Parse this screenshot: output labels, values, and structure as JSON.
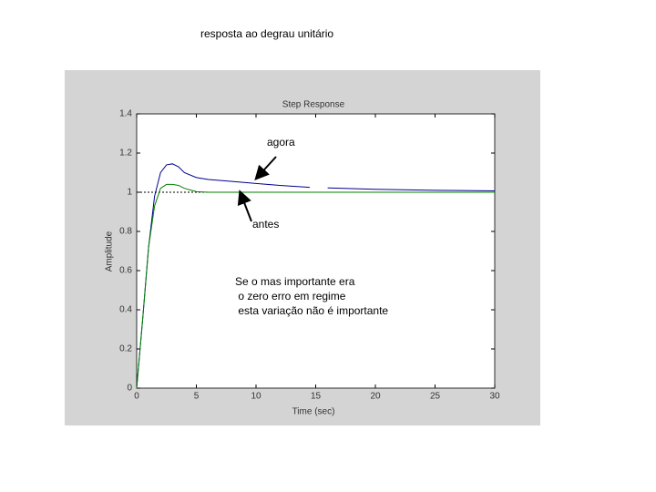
{
  "slide_title": "resposta ao degrau unitário",
  "chart_data": {
    "type": "line",
    "title": "Step Response",
    "xlabel": "Time (sec)",
    "ylabel": "Amplitude",
    "x": [
      0,
      0.5,
      1,
      1.5,
      2,
      2.5,
      3,
      3.5,
      4,
      5,
      6,
      8,
      10,
      12,
      14.5,
      15.5,
      16,
      20,
      25,
      30
    ],
    "series": [
      {
        "color": "#00008f",
        "values": [
          0,
          0.35,
          0.72,
          0.98,
          1.1,
          1.14,
          1.145,
          1.13,
          1.1,
          1.075,
          1.065,
          1.055,
          1.045,
          1.035,
          1.025,
          null,
          1.022,
          1.015,
          1.01,
          1.007
        ]
      },
      {
        "color": "#008000",
        "values": [
          0,
          0.35,
          0.72,
          0.93,
          1.02,
          1.04,
          1.04,
          1.035,
          1.02,
          1.003,
          1.0,
          1.0,
          1.0,
          1.0,
          1.0,
          1.0,
          1.0,
          1.0,
          1.0,
          1.0
        ]
      }
    ],
    "reference_line": 1,
    "xlim": [
      0,
      30
    ],
    "xticks": [
      0,
      5,
      10,
      15,
      20,
      25,
      30
    ],
    "ylim": [
      0,
      1.4
    ],
    "yticks": [
      0,
      0.2,
      0.4,
      0.6,
      0.8,
      1,
      1.2,
      1.4
    ],
    "grid": false,
    "annotations": [
      "agora",
      "antes",
      "Se o mas importante era",
      " o zero erro em regime",
      " esta variação não é importante"
    ]
  }
}
